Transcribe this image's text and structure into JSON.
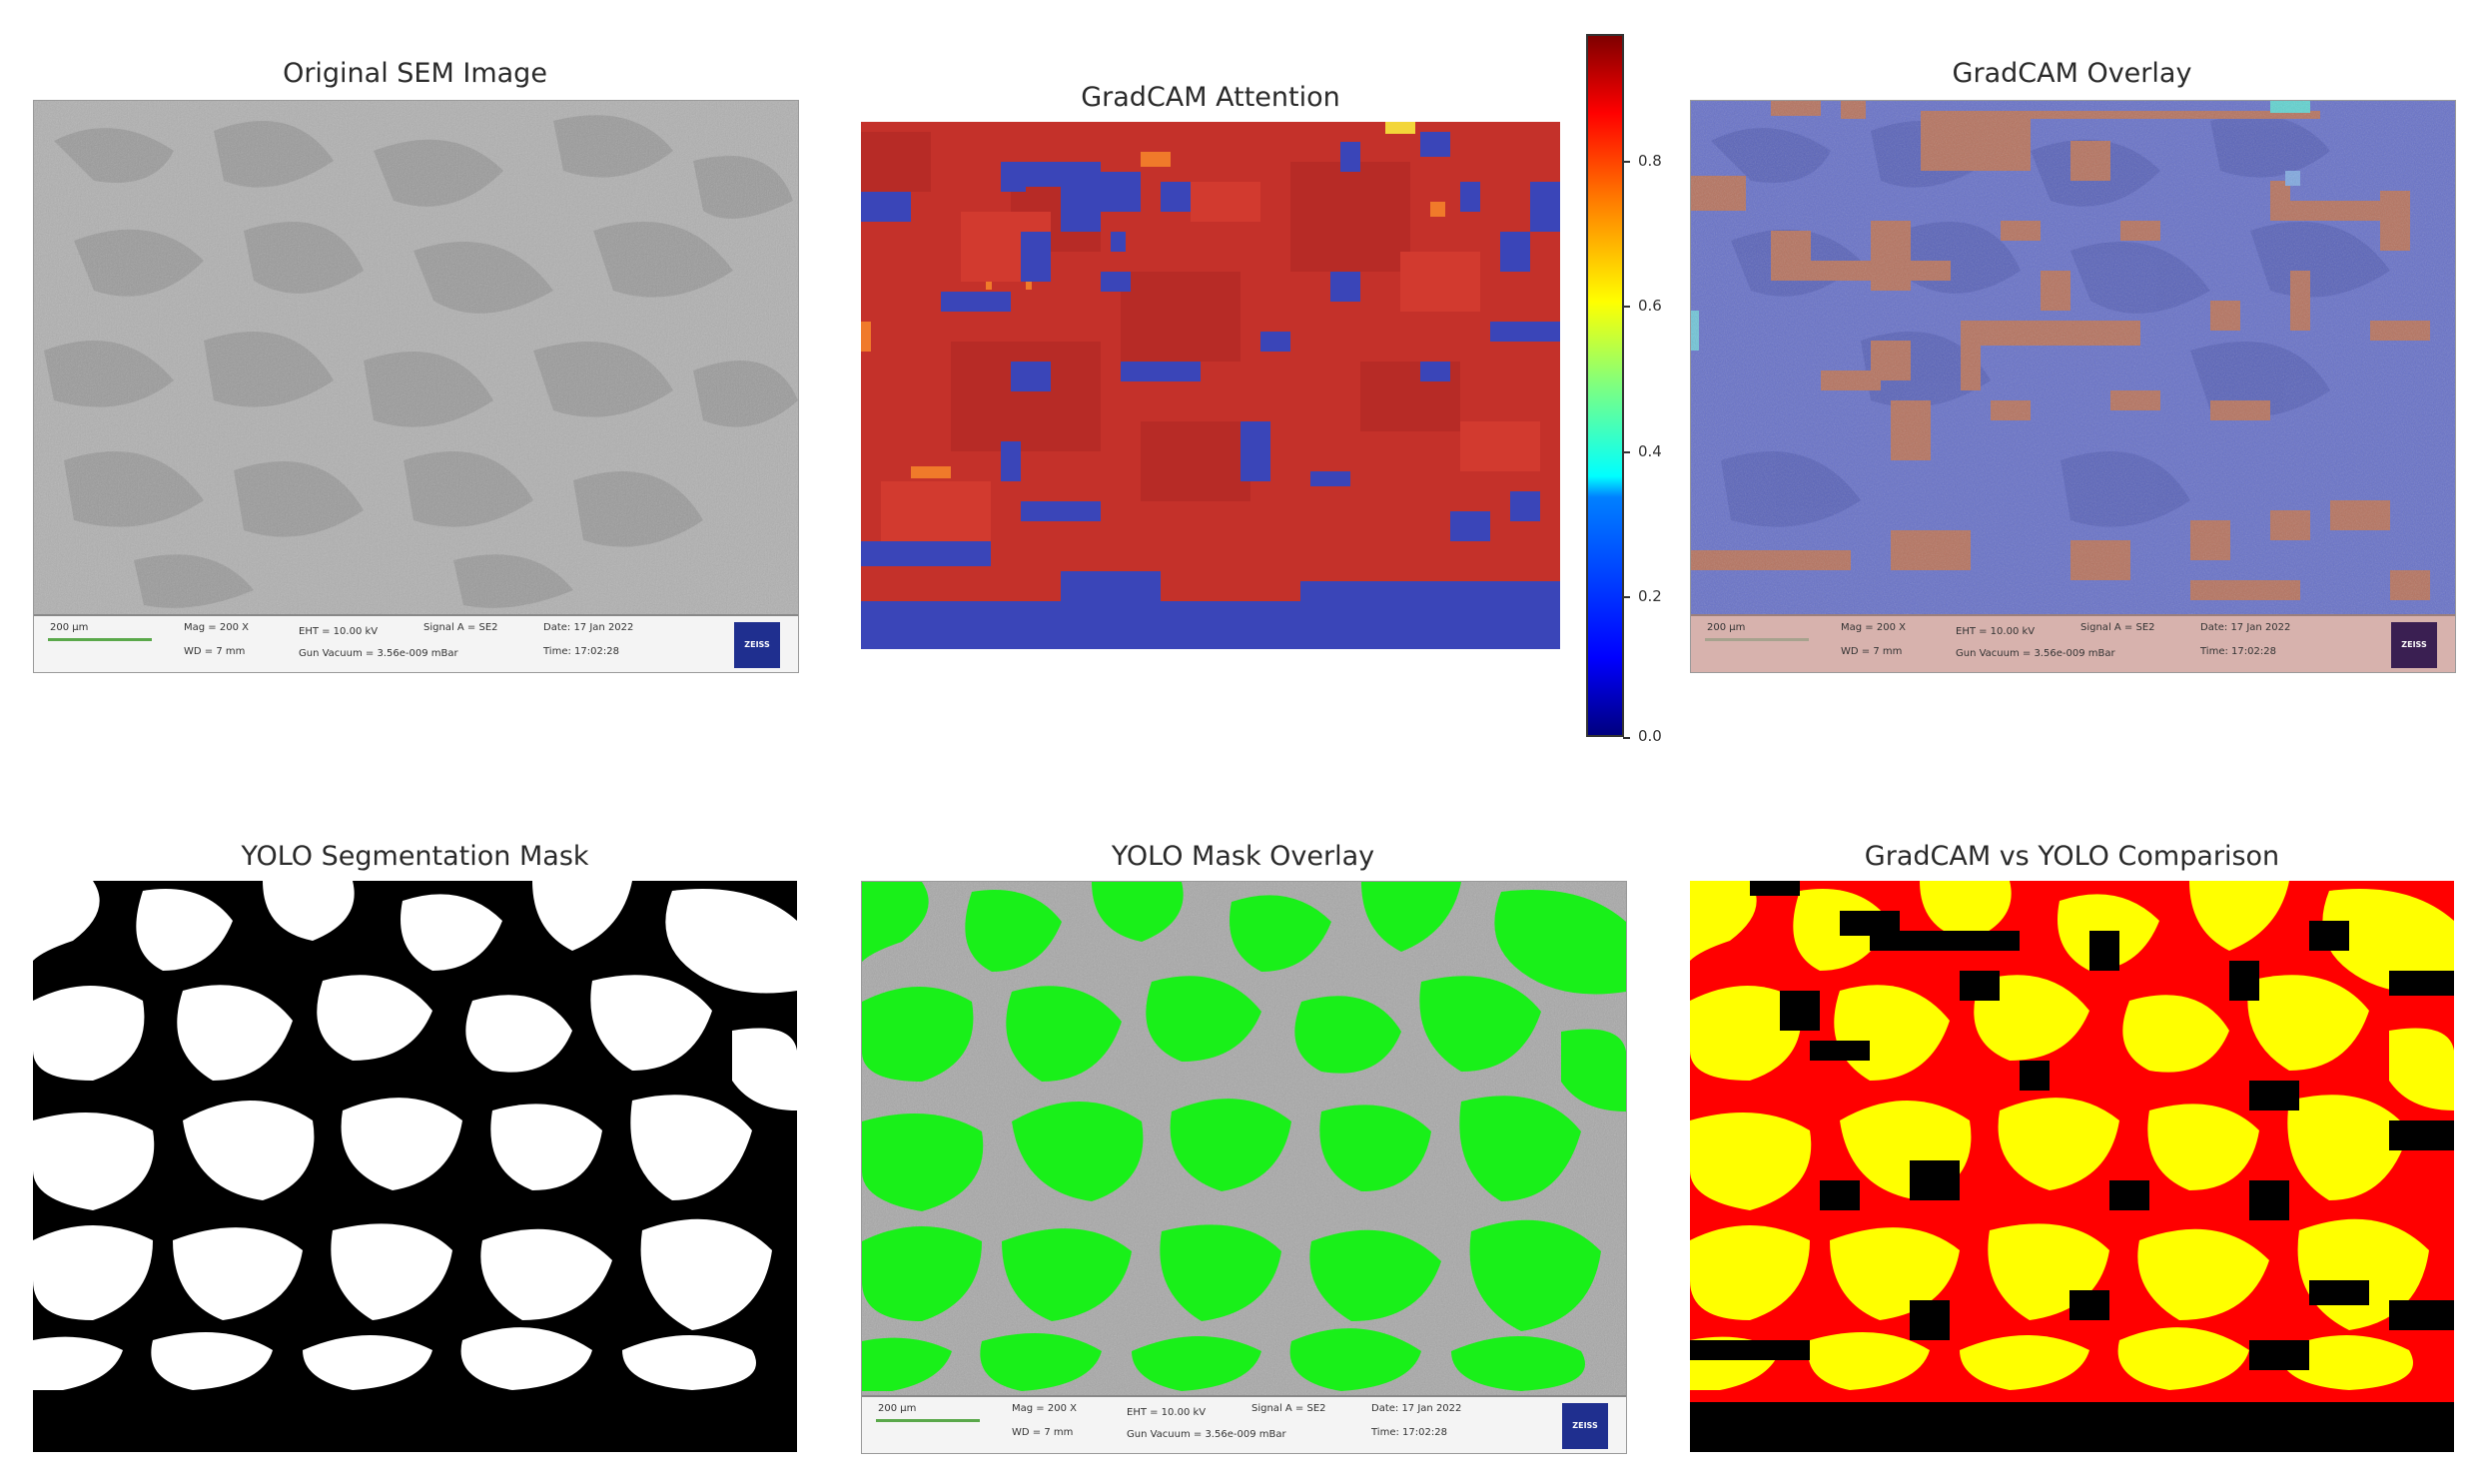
{
  "panels": {
    "sem": {
      "title": "Original SEM Image"
    },
    "gradcam": {
      "title": "GradCAM Attention"
    },
    "overlay": {
      "title": "GradCAM Overlay"
    },
    "mask": {
      "title": "YOLO Segmentation Mask"
    },
    "mask_overlay": {
      "title": "YOLO Mask Overlay"
    },
    "comparison": {
      "title": "GradCAM vs YOLO Comparison"
    }
  },
  "sem_footer": {
    "scale": "200 µm",
    "mag": "Mag =  200 X",
    "eht": "EHT = 10.00 kV",
    "signal": "Signal A = SE2",
    "date": "Date: 17 Jan 2022",
    "wd": "WD =   7 mm",
    "vacuum": "Gun Vacuum = 3.56e-009 mBar",
    "time": "Time: 17:02:28",
    "logo": "ZEISS"
  },
  "colorbar": {
    "ticks": [
      "0.8",
      "0.6",
      "0.4",
      "0.2",
      "0.0"
    ],
    "colormap": "jet"
  },
  "colors": {
    "gradcam_high": "#c4312a",
    "gradcam_low": "#3a45b8",
    "overlay_blue": "#6670c8",
    "overlay_orange": "#b5715d",
    "mask_green": "#19f019",
    "comparison_yellow": "#ffff00",
    "comparison_red": "#ff0000"
  }
}
